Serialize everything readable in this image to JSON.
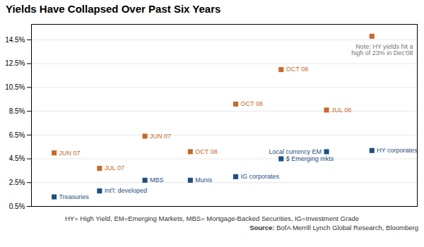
{
  "chart_data": {
    "type": "scatter",
    "title": "Yields Have Collapsed Over Past Six Years",
    "annotations": [
      "Note: HY yields hit a\nhigh of 23% in Dec'08"
    ],
    "footnote": "HY= High Yield, EM=Emerging Markets, MBS= Mortgage-Backed Securities, IG=Investment Grade",
    "source": {
      "label": "Source:",
      "text": "BofA Merrill Lynch Global Research, Bloomberg"
    },
    "marker": "square",
    "grid": true,
    "tick_labels": "y",
    "xlim": [
      0.5,
      9.0
    ],
    "ylim": [
      0.5,
      15.8
    ],
    "yticks": [
      {
        "value": 0.5,
        "label": "0.5%"
      },
      {
        "value": 2.5,
        "label": "2.5%"
      },
      {
        "value": 4.5,
        "label": "4.5%"
      },
      {
        "value": 6.5,
        "label": "6.5%"
      },
      {
        "value": 8.5,
        "label": "8.5%"
      },
      {
        "value": 10.5,
        "label": "10.5%"
      },
      {
        "value": 12.5,
        "label": "12.5%"
      },
      {
        "value": 14.5,
        "label": "14.5%"
      }
    ],
    "series": [
      {
        "color": "#1f4f7e",
        "x": [
          1,
          2,
          3,
          4,
          5,
          6,
          7,
          8
        ],
        "values": [
          1.3,
          1.8,
          2.7,
          2.7,
          3.0,
          4.5,
          5.1,
          5.2
        ],
        "labels": [
          "Treasuries",
          "Int'l: developed",
          "MBS",
          "Munis",
          "IG corporates",
          "$ Emerging mkts",
          "Local currency EM",
          "HY corporates"
        ]
      },
      {
        "color": "#c8692a",
        "x": [
          1,
          2,
          3,
          4,
          5,
          6,
          7,
          8
        ],
        "values": [
          5.0,
          3.7,
          6.4,
          5.1,
          9.1,
          12.0,
          8.6,
          14.8
        ],
        "labels": [
          "JUN 07",
          "JUL 07",
          "JUN 07",
          "OCT 08",
          "OCT 08",
          "OCT 08",
          "JUL 08",
          null
        ]
      }
    ]
  }
}
